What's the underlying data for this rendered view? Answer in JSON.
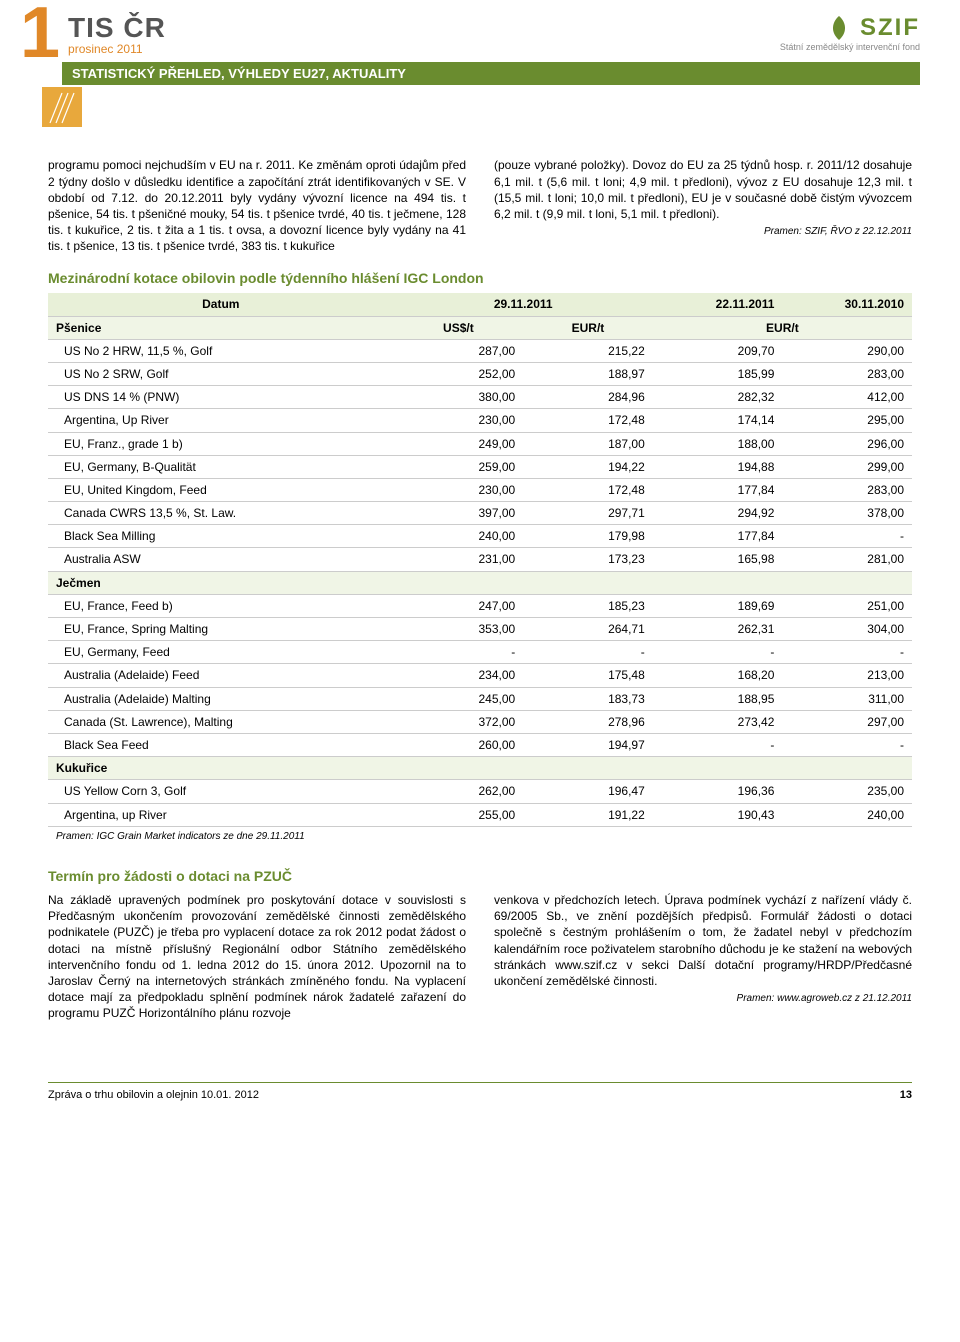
{
  "header": {
    "big_number": "1",
    "tis_title": "TIS ČR",
    "tis_date": "prosinec 2011",
    "green_bar": "STATISTICKÝ PŘEHLED, VÝHLEDY EU27, AKTUALITY",
    "szif_label": "SZIF",
    "szif_sub": "Státní zemědělský intervenční fond"
  },
  "body": {
    "left_para": "programu pomoci nejchudším v EU na r. 2011. Ke změnám oproti údajům před 2 týdny došlo v důsledku identifice a započítání ztrát identifikovaných v SE. V období od 7.12. do 20.12.2011 byly vydány vývozní licence na 494 tis. t pšenice, 54 tis. t pšeničné mouky, 54 tis. t pšenice tvrdé, 40 tis. t ječmene, 128 tis. t kukuřice, 2 tis. t žita a 1 tis. t ovsa, a dovozní licence byly vydány na 41 tis. t pšenice, 13 tis. t pšenice tvrdé, 383 tis. t kukuřice",
    "right_para": "(pouze vybrané položky). Dovoz do EU za 25 týdnů hosp. r. 2011/12 dosahuje 6,1 mil. t (5,6 mil. t loni; 4,9 mil. t předloni), vývoz z EU dosahuje 12,3 mil. t (15,5 mil. t loni; 10,0 mil. t předloni), EU je v současné době čistým vývozcem 6,2 mil. t (9,9 mil. t loni, 5,1 mil. t předloni).",
    "right_source": "Pramen: SZIF, ŘVO z 22.12.2011"
  },
  "table": {
    "title": "Mezinárodní kotace obilovin podle týdenního hlášení IGC London",
    "head": {
      "c0": "Datum",
      "c1": "29.11.2011",
      "c2": "",
      "c3": "22.11.2011",
      "c4": "30.11.2010"
    },
    "sub": {
      "c0": "Pšenice",
      "c1": "US$/t",
      "c2": "EUR/t",
      "c34": "EUR/t"
    },
    "rows": [
      {
        "label": "US No 2 HRW, 11,5 %, Golf",
        "v": [
          "287,00",
          "215,22",
          "209,70",
          "290,00"
        ]
      },
      {
        "label": "US No 2 SRW, Golf",
        "v": [
          "252,00",
          "188,97",
          "185,99",
          "283,00"
        ]
      },
      {
        "label": "US DNS 14 % (PNW)",
        "v": [
          "380,00",
          "284,96",
          "282,32",
          "412,00"
        ]
      },
      {
        "label": "Argentina, Up River",
        "v": [
          "230,00",
          "172,48",
          "174,14",
          "295,00"
        ]
      },
      {
        "label": "EU, Franz., grade 1 b)",
        "v": [
          "249,00",
          "187,00",
          "188,00",
          "296,00"
        ]
      },
      {
        "label": "EU, Germany, B-Qualität",
        "v": [
          "259,00",
          "194,22",
          "194,88",
          "299,00"
        ]
      },
      {
        "label": "EU, United Kingdom, Feed",
        "v": [
          "230,00",
          "172,48",
          "177,84",
          "283,00"
        ]
      },
      {
        "label": "Canada CWRS 13,5 %, St. Law.",
        "v": [
          "397,00",
          "297,71",
          "294,92",
          "378,00"
        ]
      },
      {
        "label": "Black Sea Milling",
        "v": [
          "240,00",
          "179,98",
          "177,84",
          "-"
        ]
      },
      {
        "label": "Australia ASW",
        "v": [
          "231,00",
          "173,23",
          "165,98",
          "281,00"
        ]
      }
    ],
    "section2": "Ječmen",
    "rows2": [
      {
        "label": "EU, France, Feed b)",
        "v": [
          "247,00",
          "185,23",
          "189,69",
          "251,00"
        ]
      },
      {
        "label": "EU, France, Spring Malting",
        "v": [
          "353,00",
          "264,71",
          "262,31",
          "304,00"
        ]
      },
      {
        "label": "EU, Germany, Feed",
        "v": [
          "-",
          "-",
          "-",
          "-"
        ]
      },
      {
        "label": "Australia (Adelaide) Feed",
        "v": [
          "234,00",
          "175,48",
          "168,20",
          "213,00"
        ]
      },
      {
        "label": "Australia (Adelaide) Malting",
        "v": [
          "245,00",
          "183,73",
          "188,95",
          "311,00"
        ]
      },
      {
        "label": "Canada (St. Lawrence), Malting",
        "v": [
          "372,00",
          "278,96",
          "273,42",
          "297,00"
        ]
      },
      {
        "label": "Black Sea Feed",
        "v": [
          "260,00",
          "194,97",
          "-",
          "-"
        ]
      }
    ],
    "section3": "Kukuřice",
    "rows3": [
      {
        "label": "US Yellow Corn 3, Golf",
        "v": [
          "262,00",
          "196,47",
          "196,36",
          "235,00"
        ]
      },
      {
        "label": "Argentina, up River",
        "v": [
          "255,00",
          "191,22",
          "190,43",
          "240,00"
        ]
      }
    ],
    "source": "Pramen: IGC Grain Market indicators ze dne 29.11.2011"
  },
  "section2": {
    "title": "Termín pro žádosti o dotaci na PZUČ",
    "left": "Na základě upravených podmínek pro poskytování dotace v souvislosti s Předčasným ukončením provozování zemědělské činnosti zemědělského podnikatele (PUZČ) je třeba pro vyplacení dotace za rok 2012 podat žádost o dotaci na místně příslušný Regionální odbor Státního zemědělského intervenčního fondu od 1. ledna 2012 do 15. února 2012. Upozornil na to Jaroslav Černý na internetových stránkách zmíněného fondu. Na vyplacení dotace mají za předpokladu splnění podmínek nárok žadatelé zařazení do programu PUZČ Horizontálního plánu rozvoje",
    "right": "venkova v předchozích letech. Úprava podmínek vychází z nařízení vlády č. 69/2005 Sb., ve znění pozdějších předpisů. Formulář žádosti o dotaci společně s čestným prohlášením o tom, že žadatel nebyl v předchozím kalendářním roce poživatelem starobního důchodu je ke stažení na webových stránkách www.szif.cz v sekci Další dotační programy/HRDP/Předčasné ukončení zemědělské činnosti.",
    "source": "Pramen: www.agroweb.cz z 21.12.2011"
  },
  "footer": {
    "left": "Zpráva o trhu obilovin a olejnin 10.01. 2012",
    "page": "13"
  }
}
